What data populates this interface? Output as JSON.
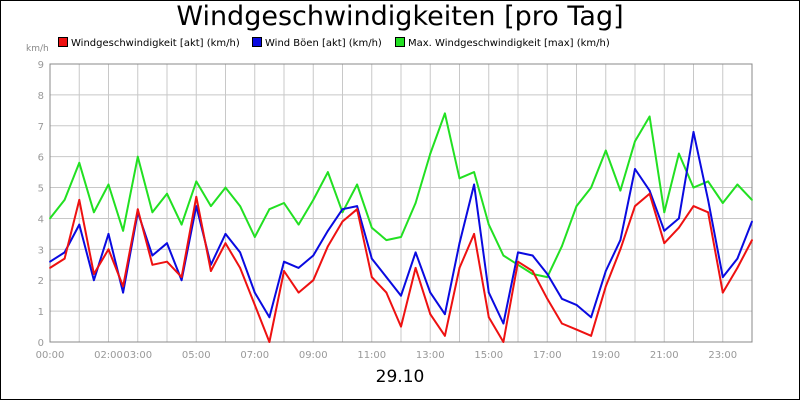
{
  "chart_data": {
    "type": "line",
    "title": "Windgeschwindigkeiten [pro Tag]",
    "xlabel": "29.10",
    "ylabel": "km/h",
    "ylim": [
      0,
      9
    ],
    "xlim": [
      0,
      24
    ],
    "y_ticks": [
      "0",
      "1",
      "2",
      "3",
      "4",
      "5",
      "6",
      "7",
      "8",
      "9"
    ],
    "x_ticks": [
      {
        "label": "00:00",
        "t": 0
      },
      {
        "label": "02:00",
        "t": 2
      },
      {
        "label": "03:00",
        "t": 3
      },
      {
        "label": "05:00",
        "t": 5
      },
      {
        "label": "07:00",
        "t": 7
      },
      {
        "label": "09:00",
        "t": 9
      },
      {
        "label": "11:00",
        "t": 11
      },
      {
        "label": "13:00",
        "t": 13
      },
      {
        "label": "15:00",
        "t": 15
      },
      {
        "label": "17:00",
        "t": 17
      },
      {
        "label": "19:00",
        "t": 19
      },
      {
        "label": "21:00",
        "t": 21
      },
      {
        "label": "23:00",
        "t": 23
      }
    ],
    "grid": true,
    "legend": "top",
    "series": [
      {
        "name": "Windgeschwindigkeit [akt] (km/h)",
        "color": "#ee1111",
        "x": [
          0,
          0.5,
          1,
          1.5,
          2,
          2.5,
          3,
          3.5,
          4,
          4.5,
          5,
          5.5,
          6,
          6.5,
          7,
          7.5,
          8,
          8.5,
          9,
          9.5,
          10,
          10.5,
          11,
          11.5,
          12,
          12.5,
          13,
          13.5,
          14,
          14.5,
          15,
          15.5,
          16,
          16.5,
          17,
          17.5,
          18,
          18.5,
          19,
          19.5,
          20,
          20.5,
          21,
          21.5,
          22,
          22.5,
          23,
          23.5,
          24
        ],
        "values": [
          2.4,
          2.7,
          4.6,
          2.2,
          3.0,
          1.8,
          4.3,
          2.5,
          2.6,
          2.1,
          4.7,
          2.3,
          3.2,
          2.4,
          1.2,
          0.0,
          2.3,
          1.6,
          2.0,
          3.1,
          3.9,
          4.3,
          2.1,
          1.6,
          0.5,
          2.4,
          0.9,
          0.2,
          2.4,
          3.5,
          0.8,
          0.0,
          2.6,
          2.3,
          1.4,
          0.6,
          0.4,
          0.2,
          1.8,
          3.0,
          4.4,
          4.8,
          3.2,
          3.7,
          4.4,
          4.2,
          1.6,
          2.4,
          3.3
        ]
      },
      {
        "name": "Wind Böen [akt] (km/h)",
        "color": "#0a0ae0",
        "x": [
          0,
          0.5,
          1,
          1.5,
          2,
          2.5,
          3,
          3.5,
          4,
          4.5,
          5,
          5.5,
          6,
          6.5,
          7,
          7.5,
          8,
          8.5,
          9,
          9.5,
          10,
          10.5,
          11,
          11.5,
          12,
          12.5,
          13,
          13.5,
          14,
          14.5,
          15,
          15.5,
          16,
          16.5,
          17,
          17.5,
          18,
          18.5,
          19,
          19.5,
          20,
          20.5,
          21,
          21.5,
          22,
          22.5,
          23,
          23.5,
          24
        ],
        "values": [
          2.6,
          2.9,
          3.8,
          2.0,
          3.5,
          1.6,
          4.2,
          2.8,
          3.2,
          2.0,
          4.4,
          2.5,
          3.5,
          2.9,
          1.6,
          0.8,
          2.6,
          2.4,
          2.8,
          3.6,
          4.3,
          4.4,
          2.7,
          2.1,
          1.5,
          2.9,
          1.6,
          0.9,
          3.2,
          5.1,
          1.6,
          0.6,
          2.9,
          2.8,
          2.2,
          1.4,
          1.2,
          0.8,
          2.3,
          3.3,
          5.6,
          4.9,
          3.6,
          4.0,
          6.8,
          4.6,
          2.1,
          2.7,
          3.9
        ]
      },
      {
        "name": "Max. Windgeschwindigkeit [max] (km/h)",
        "color": "#22e022",
        "x": [
          0,
          0.5,
          1,
          1.5,
          2,
          2.5,
          3,
          3.5,
          4,
          4.5,
          5,
          5.5,
          6,
          6.5,
          7,
          7.5,
          8,
          8.5,
          9,
          9.5,
          10,
          10.5,
          11,
          11.5,
          12,
          12.5,
          13,
          13.5,
          14,
          14.5,
          15,
          15.5,
          16,
          16.5,
          17,
          17.5,
          18,
          18.5,
          19,
          19.5,
          20,
          20.5,
          21,
          21.5,
          22,
          22.5,
          23,
          23.5,
          24
        ],
        "values": [
          4.0,
          4.6,
          5.8,
          4.2,
          5.1,
          3.6,
          6.0,
          4.2,
          4.8,
          3.8,
          5.2,
          4.4,
          5.0,
          4.4,
          3.4,
          4.3,
          4.5,
          3.8,
          4.6,
          5.5,
          4.2,
          5.1,
          3.7,
          3.3,
          3.4,
          4.5,
          6.1,
          7.4,
          5.3,
          5.5,
          3.8,
          2.8,
          2.5,
          2.2,
          2.1,
          3.1,
          4.4,
          5.0,
          6.2,
          4.9,
          6.5,
          7.3,
          4.2,
          6.1,
          5.0,
          5.2,
          4.5,
          5.1,
          4.6
        ]
      }
    ]
  }
}
